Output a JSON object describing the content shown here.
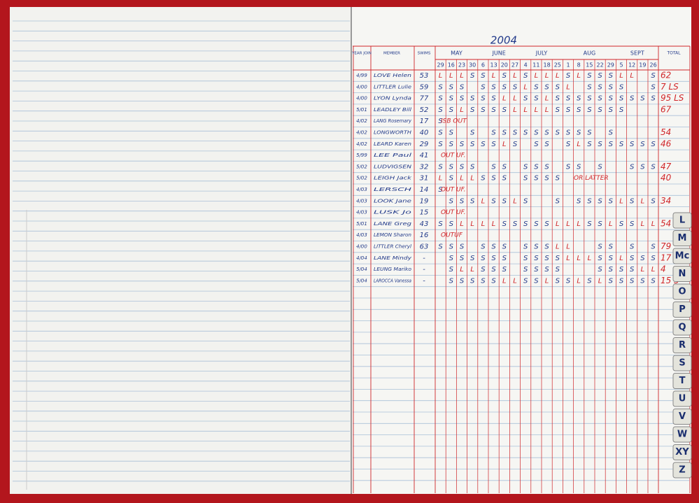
{
  "header": {
    "year": "2004"
  },
  "columns": [
    "YEAR JOIN",
    "MEMBER",
    "SWIMS",
    "MAY",
    "JUNE",
    "JULY",
    "AUG",
    "SEPT",
    "TOTAL"
  ],
  "dates": [
    "29",
    "16",
    "23",
    "30",
    "6",
    "13",
    "20",
    "27",
    "4",
    "11",
    "18",
    "25",
    "1",
    "8",
    "15",
    "22",
    "29",
    "5",
    "12",
    "19",
    "26"
  ],
  "rows": [
    {
      "joined": "4/99",
      "member": "LOVE Helen",
      "swims": "53",
      "marks": [
        "L",
        "L",
        "L",
        "S",
        "S",
        "L",
        "S",
        "L",
        "S",
        "L",
        "L",
        "L",
        "S",
        "L",
        "S",
        "S",
        "S",
        "L",
        "L",
        null,
        "S"
      ],
      "total": "62"
    },
    {
      "joined": "4/00",
      "member": "LITTLER Lulie",
      "swims": "59",
      "marks": [
        "S",
        "S",
        "S",
        null,
        "S",
        "S",
        "S",
        "S",
        "L",
        "S",
        "S",
        "S",
        "L",
        null,
        "S",
        "S",
        "S",
        "S",
        null,
        null,
        "S"
      ],
      "total": "7 LS"
    },
    {
      "joined": "4/00",
      "member": "LYON Lynda",
      "swims": "77",
      "marks": [
        "S",
        "S",
        "S",
        "S",
        "S",
        "S",
        "L",
        "L",
        "S",
        "S",
        "L",
        "S",
        "S",
        "S",
        "S",
        "S",
        "S",
        "S",
        "S",
        "S",
        "S"
      ],
      "total": "95 LS"
    },
    {
      "joined": "5/01",
      "member": "LEADLEY Bill",
      "swims": "52",
      "marks": [
        "S",
        "S",
        "L",
        "S",
        "S",
        "S",
        "S",
        "L",
        "L",
        "L",
        "L",
        "S",
        "S",
        "S",
        "S",
        "S",
        "S",
        "S",
        null,
        null,
        null
      ],
      "total": "67"
    },
    {
      "joined": "4/02",
      "member": "LANG Rosemary",
      "swims": "17",
      "marks": [
        "S",
        null,
        null,
        null,
        null,
        null,
        null,
        null,
        null,
        null,
        null,
        null,
        null,
        null,
        null,
        null,
        null,
        null,
        null,
        null,
        null
      ],
      "note": "ISB OUT"
    },
    {
      "joined": "4/02",
      "member": "LONGWORTH",
      "swims": "40",
      "marks": [
        "S",
        "S",
        null,
        "S",
        null,
        "S",
        "S",
        "S",
        "S",
        "S",
        "S",
        "S",
        "S",
        "S",
        "S",
        null,
        "S",
        null,
        null,
        null,
        null
      ],
      "total": "54"
    },
    {
      "joined": "4/02",
      "member": "LEARD Karen",
      "swims": "29",
      "marks": [
        "S",
        "S",
        "S",
        "S",
        "S",
        "S",
        "L",
        "S",
        null,
        "S",
        "S",
        null,
        "S",
        "L",
        "S",
        "S",
        "S",
        "S",
        "S",
        "S",
        "S"
      ],
      "total": "46"
    },
    {
      "joined": "5/99",
      "member": "LEE Paul",
      "swims": "41",
      "marks": [
        null,
        null,
        null,
        null,
        null,
        null,
        null,
        null,
        null,
        null,
        null,
        null,
        null,
        null,
        null,
        null,
        null,
        null,
        null,
        null,
        null
      ],
      "note": "OUT UF."
    },
    {
      "joined": "5/02",
      "member": "LUDVIGSEN",
      "swims": "32",
      "marks": [
        "S",
        "S",
        "S",
        "S",
        null,
        "S",
        "S",
        null,
        "S",
        "S",
        "S",
        null,
        "S",
        "S",
        null,
        "S",
        null,
        null,
        "S",
        "S",
        "S"
      ],
      "total": "47"
    },
    {
      "joined": "5/02",
      "member": "LEIGH Jack",
      "swims": "31",
      "marks": [
        "L",
        "S",
        "L",
        "L",
        "S",
        "S",
        "S",
        null,
        "S",
        "S",
        "S",
        "S",
        null,
        null,
        null,
        null,
        null,
        null,
        null,
        null,
        null
      ],
      "total": "40",
      "note": "OR LATTER"
    },
    {
      "joined": "4/03",
      "member": "LERSCH",
      "swims": "14",
      "marks": [
        "S",
        null,
        null,
        null,
        null,
        null,
        null,
        null,
        null,
        null,
        null,
        null,
        null,
        null,
        null,
        null,
        null,
        null,
        null,
        null,
        null
      ],
      "note": "OUT UF."
    },
    {
      "joined": "4/03",
      "member": "LOOK Jane",
      "swims": "19",
      "marks": [
        null,
        "S",
        "S",
        "S",
        "L",
        "S",
        "S",
        "L",
        "S",
        null,
        null,
        "S",
        null,
        "S",
        "S",
        "S",
        "S",
        "L",
        "S",
        "L",
        "S"
      ],
      "total": "34"
    },
    {
      "joined": "4/03",
      "member": "LUSK Jo",
      "swims": "15",
      "marks": [
        null,
        null,
        null,
        null,
        null,
        null,
        null,
        null,
        null,
        null,
        null,
        null,
        null,
        null,
        null,
        null,
        null,
        null,
        null,
        null,
        null
      ],
      "note": "OUT UF."
    },
    {
      "joined": "5/01",
      "member": "LANE Greg",
      "swims": "43",
      "marks": [
        "S",
        "S",
        "L",
        "L",
        "L",
        "L",
        "S",
        "S",
        "S",
        "S",
        "S",
        "L",
        "L",
        "L",
        "S",
        "S",
        "L",
        "S",
        "S",
        "L",
        "L"
      ],
      "total": "54"
    },
    {
      "joined": "4/03",
      "member": "LEMON Sharon",
      "swims": "16",
      "marks": [
        null,
        null,
        null,
        null,
        null,
        null,
        null,
        null,
        null,
        null,
        null,
        null,
        null,
        null,
        null,
        null,
        null,
        null,
        null,
        null,
        null
      ],
      "note": "OUTUF"
    },
    {
      "joined": "4/00",
      "member": "LITTLER Cheryl",
      "swims": "63",
      "marks": [
        "S",
        "S",
        "S",
        null,
        "S",
        "S",
        "S",
        null,
        "S",
        "S",
        "S",
        "L",
        "L",
        null,
        null,
        "S",
        "S",
        null,
        "S",
        null,
        "S"
      ],
      "total": "79"
    },
    {
      "joined": "4/04",
      "member": "LANE Mindy",
      "swims": "-",
      "marks": [
        null,
        "S",
        "S",
        "S",
        "S",
        "S",
        "S",
        null,
        "S",
        "S",
        "S",
        "S",
        "L",
        "L",
        "L",
        "S",
        "S",
        "L",
        "S",
        "S",
        "S"
      ],
      "total": "17"
    },
    {
      "joined": "5/04",
      "member": "LEUNG Mariko",
      "swims": "-",
      "marks": [
        null,
        "S",
        "L",
        "L",
        "S",
        "S",
        "S",
        null,
        "S",
        "S",
        "S",
        "S",
        null,
        null,
        null,
        "S",
        "S",
        "S",
        "S",
        "L",
        "L"
      ],
      "total": "4"
    },
    {
      "joined": "5/04",
      "member": "LAROCCA Vanessa",
      "swims": "-",
      "marks": [
        null,
        "S",
        "S",
        "S",
        "S",
        "S",
        "L",
        "L",
        "S",
        "S",
        "L",
        "S",
        "S",
        "L",
        "S",
        "L",
        "S",
        "S",
        "S",
        "S",
        "S"
      ],
      "total": "15 3"
    }
  ],
  "tabs": [
    "L",
    "M",
    "Mc",
    "N",
    "O",
    "P",
    "Q",
    "R",
    "S",
    "T",
    "U",
    "V",
    "W",
    "XY",
    "Z"
  ]
}
